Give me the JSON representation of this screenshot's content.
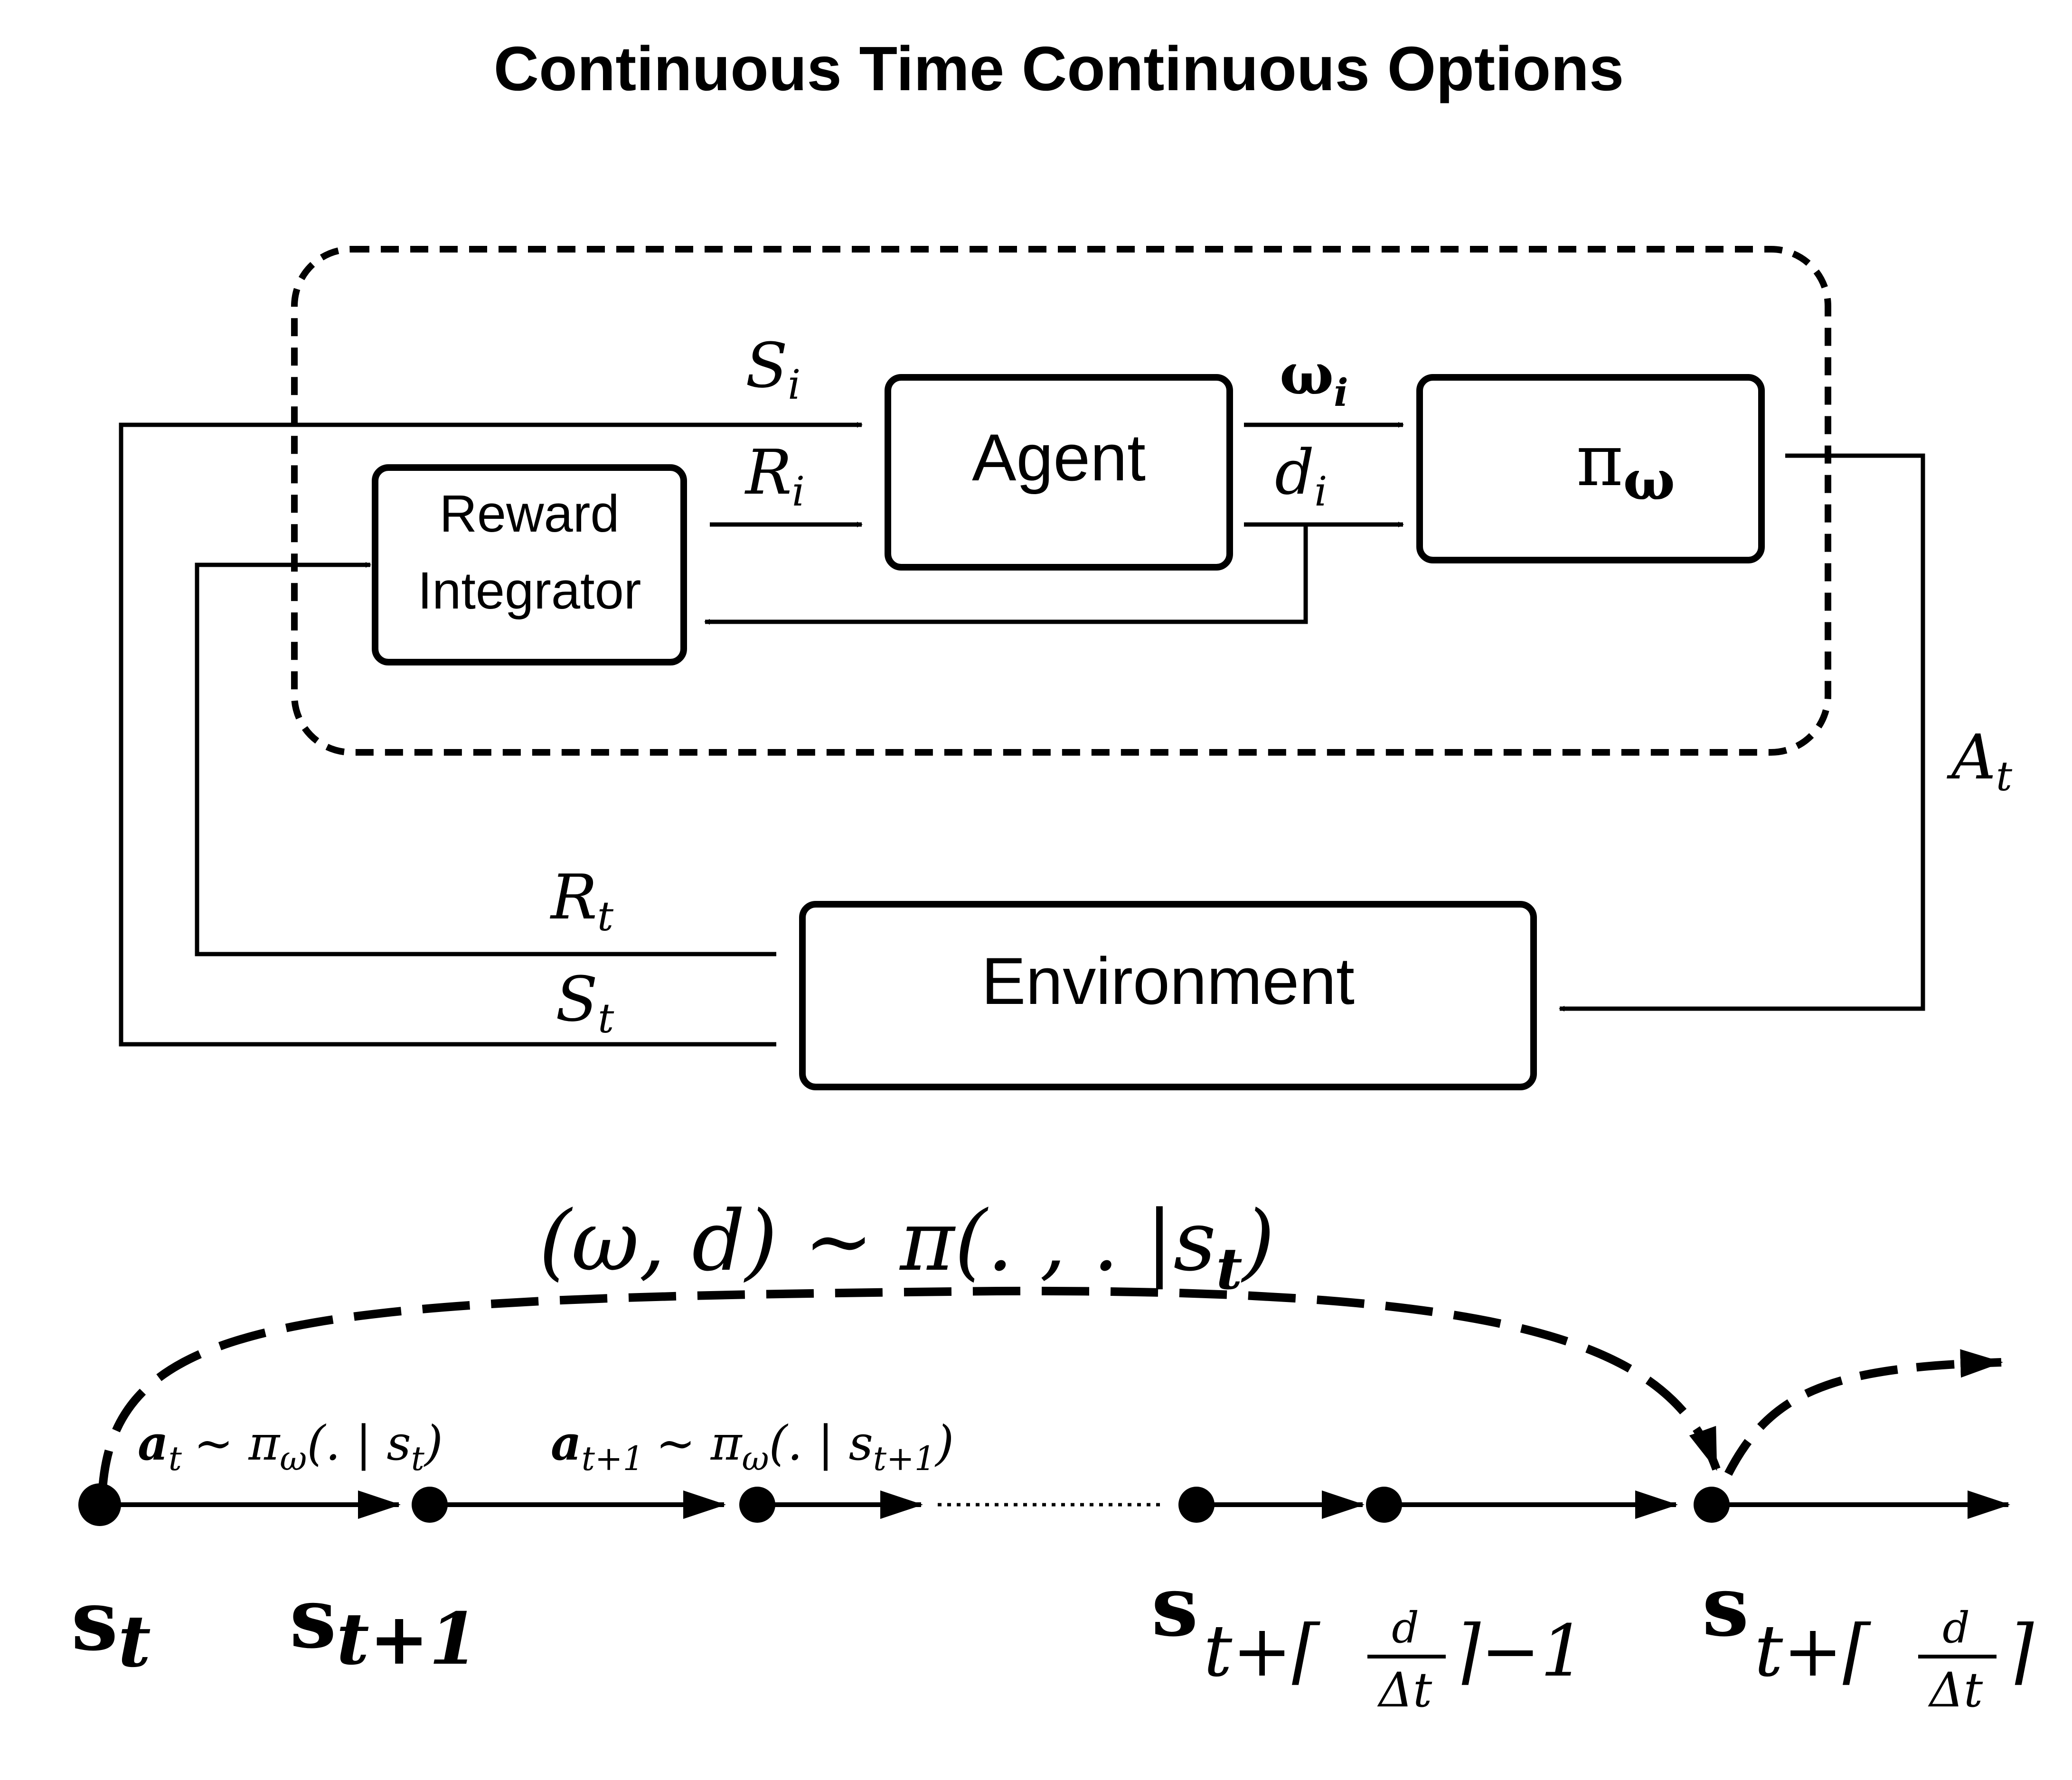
{
  "title": "Continuous Time Continuous Options",
  "boxes": {
    "agent": "Agent",
    "reward_integrator_line1": "Reward",
    "reward_integrator_line2": "Integrator",
    "policy": "π",
    "policy_sub": "ω",
    "environment": "Environment"
  },
  "signals": {
    "s_i": "S",
    "s_i_sub": "i",
    "r_i": "R",
    "r_i_sub": "i",
    "omega_i": "ω",
    "omega_i_sub": "i",
    "d_i": "d",
    "d_i_sub": "i",
    "a_t": "A",
    "a_t_sub": "t",
    "r_t": "R",
    "r_t_sub": "t",
    "s_t": "S",
    "s_t_sub": "t"
  },
  "timeline": {
    "option_sampling": "(ω, d) ∼ π(. , . |s",
    "option_sampling_bold_sub": "t",
    "option_sampling_close": ")",
    "action_t_lhs": "a",
    "action_t_lhs_sub": "t",
    "action_t_rhs": "∼ π",
    "action_t_rhs_sub": "ω",
    "action_t_args": "(. | s",
    "action_t_args_sub": "t",
    "action_t_close": ")",
    "action_t1_lhs": "a",
    "action_t1_lhs_sub": "t+1",
    "action_t1_rhs": "∼ π",
    "action_t1_rhs_sub": "ω",
    "action_t1_args": "(. | s",
    "action_t1_args_sub": "t+1",
    "action_t1_close": ")",
    "state_labels": [
      {
        "base": "s",
        "sub": "t"
      },
      {
        "base": "s",
        "sub": "t+1"
      },
      {
        "base": "s",
        "sub": "t+⌈",
        "frac_num": "d",
        "frac_den": "Δt",
        "tail": "⌉−1"
      },
      {
        "base": "s",
        "sub": "t+⌈",
        "frac_num": "d",
        "frac_den": "Δt",
        "tail": "⌉"
      }
    ]
  }
}
